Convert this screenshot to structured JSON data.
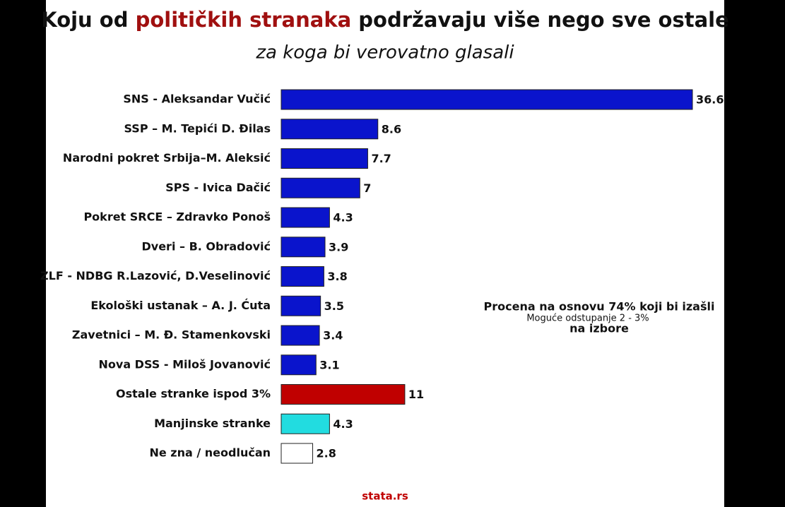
{
  "chart_data": {
    "type": "bar",
    "orientation": "horizontal",
    "title": [
      "Koju od ",
      "političkih stranaka",
      " podržavaju više nego sve ostale"
    ],
    "title_highlight_color": "#a01010",
    "subtitle": "za koga bi verovatno glasali",
    "categories": [
      "SNS - Aleksandar Vučić",
      "SSP – M. Tepići D. Đilas",
      "Narodni pokret Srbija–M. Aleksić",
      "SPS - Ivica Dačić",
      "Pokret SRCE – Zdravko Ponoš",
      "Dveri – B. Obradović",
      "ZLF - NDBG R.Lazović, D.Veselinović",
      "Ekološki ustanak – A. J. Ćuta",
      "Zavetnici – M. Đ. Stamenkovski",
      "Nova DSS - Miloš Jovanović",
      "Ostale stranke ispod 3%",
      "Manjinske stranke",
      "Ne zna / neodlučan"
    ],
    "values": [
      36.6,
      8.6,
      7.7,
      7,
      4.3,
      3.9,
      3.8,
      3.5,
      3.4,
      3.1,
      11,
      4.3,
      2.8
    ],
    "colors": [
      "#0a14cc",
      "#0a14cc",
      "#0a14cc",
      "#0a14cc",
      "#0a14cc",
      "#0a14cc",
      "#0a14cc",
      "#0a14cc",
      "#0a14cc",
      "#0a14cc",
      "#c00000",
      "#22dce0",
      "#ffffff"
    ],
    "annotation": [
      "Procena na osnovu 74% koji bi izašli",
      "na izbore"
    ],
    "annotation_small": "Moguće odstupanje 2 - 3%",
    "source": "stata.rs"
  }
}
